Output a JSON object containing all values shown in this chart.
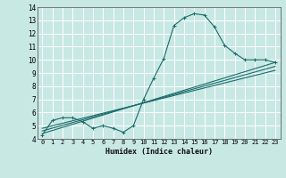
{
  "title": "",
  "xlabel": "Humidex (Indice chaleur)",
  "xlim": [
    -0.5,
    23.5
  ],
  "ylim": [
    4,
    14
  ],
  "xticks": [
    0,
    1,
    2,
    3,
    4,
    5,
    6,
    7,
    8,
    9,
    10,
    11,
    12,
    13,
    14,
    15,
    16,
    17,
    18,
    19,
    20,
    21,
    22,
    23
  ],
  "yticks": [
    4,
    5,
    6,
    7,
    8,
    9,
    10,
    11,
    12,
    13,
    14
  ],
  "bg_color": "#c8e8e4",
  "grid_color": "#ffffff",
  "line_color": "#1a6b6b",
  "line1_x": [
    0,
    1,
    2,
    3,
    4,
    5,
    6,
    7,
    8,
    9,
    10,
    11,
    12,
    13,
    14,
    15,
    16,
    17,
    18,
    19,
    20,
    21,
    22,
    23
  ],
  "line1_y": [
    4.3,
    5.4,
    5.6,
    5.6,
    5.3,
    4.8,
    5.0,
    4.8,
    4.5,
    5.0,
    7.0,
    8.6,
    10.1,
    12.6,
    13.2,
    13.5,
    13.4,
    12.5,
    11.1,
    10.5,
    10.0,
    10.0,
    10.0,
    9.8
  ],
  "line2_x": [
    0,
    23
  ],
  "line2_y": [
    4.4,
    9.8
  ],
  "line3_x": [
    0,
    23
  ],
  "line3_y": [
    4.6,
    9.5
  ],
  "line4_x": [
    0,
    23
  ],
  "line4_y": [
    4.8,
    9.2
  ]
}
